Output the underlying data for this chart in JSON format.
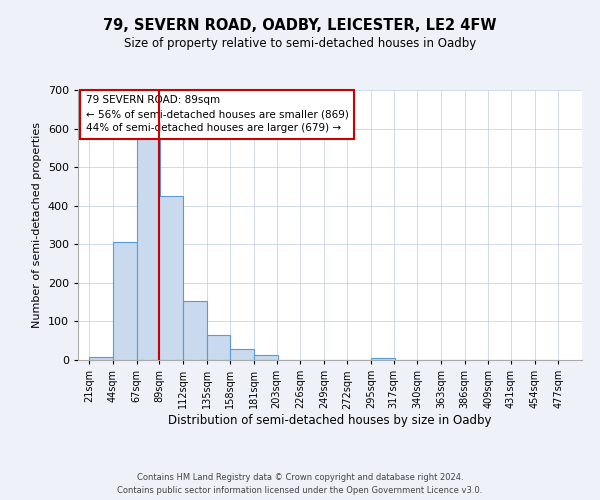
{
  "title": "79, SEVERN ROAD, OADBY, LEICESTER, LE2 4FW",
  "subtitle": "Size of property relative to semi-detached houses in Oadby",
  "xlabel": "Distribution of semi-detached houses by size in Oadby",
  "ylabel": "Number of semi-detached properties",
  "bar_left_edges": [
    21,
    44,
    67,
    89,
    112,
    135,
    158,
    181,
    203,
    226,
    249,
    272,
    295,
    317,
    340,
    363,
    386,
    409,
    431,
    454
  ],
  "bar_heights": [
    8,
    305,
    572,
    425,
    152,
    65,
    28,
    12,
    0,
    0,
    0,
    0,
    5,
    0,
    0,
    0,
    0,
    0,
    0,
    0
  ],
  "bin_width": 23,
  "tick_labels": [
    "21sqm",
    "44sqm",
    "67sqm",
    "89sqm",
    "112sqm",
    "135sqm",
    "158sqm",
    "181sqm",
    "203sqm",
    "226sqm",
    "249sqm",
    "272sqm",
    "295sqm",
    "317sqm",
    "340sqm",
    "363sqm",
    "386sqm",
    "409sqm",
    "431sqm",
    "454sqm",
    "477sqm"
  ],
  "tick_positions": [
    21,
    44,
    67,
    89,
    112,
    135,
    158,
    181,
    203,
    226,
    249,
    272,
    295,
    317,
    340,
    363,
    386,
    409,
    431,
    454,
    477
  ],
  "bar_color": "#c9d9ee",
  "bar_edge_color": "#5b9bd5",
  "property_line_x": 89,
  "property_line_color": "#cc0000",
  "ylim": [
    0,
    700
  ],
  "yticks": [
    0,
    100,
    200,
    300,
    400,
    500,
    600,
    700
  ],
  "annotation_title": "79 SEVERN ROAD: 89sqm",
  "annotation_line1": "← 56% of semi-detached houses are smaller (869)",
  "annotation_line2": "44% of semi-detached houses are larger (679) →",
  "annotation_box_color": "#cc0000",
  "footer1": "Contains HM Land Registry data © Crown copyright and database right 2024.",
  "footer2": "Contains public sector information licensed under the Open Government Licence v3.0.",
  "bg_color": "#eef2f8",
  "plot_bg_color": "#ffffff",
  "grid_color": "#c8d4e8"
}
